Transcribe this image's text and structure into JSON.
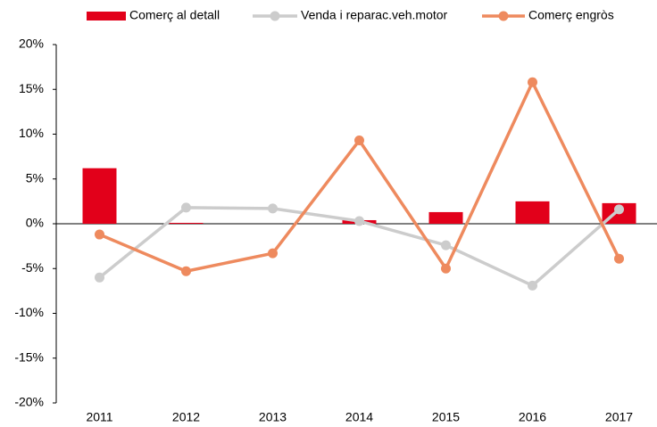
{
  "chart_data": {
    "type": "bar_line",
    "categories": [
      "2011",
      "2012",
      "2013",
      "2014",
      "2015",
      "2016",
      "2017"
    ],
    "series": [
      {
        "name": "Comerç al detall",
        "type": "bar",
        "color": "#e2001a",
        "values": [
          6.2,
          0.1,
          0,
          0.4,
          1.3,
          2.5,
          2.3
        ]
      },
      {
        "name": "Venda i reparac.veh.motor",
        "type": "line",
        "color": "#cccccc",
        "values": [
          -6.0,
          1.8,
          1.7,
          0.3,
          -2.4,
          -6.9,
          1.6
        ]
      },
      {
        "name": "Comerç engròs",
        "type": "line",
        "color": "#ee8a5e",
        "values": [
          -1.2,
          -5.3,
          -3.3,
          9.3,
          -5.0,
          15.8,
          -3.9
        ]
      }
    ],
    "ylim": [
      -20,
      20
    ],
    "yticks": [
      {
        "value": -20,
        "label": "-20%"
      },
      {
        "value": -15,
        "label": "-15%"
      },
      {
        "value": -10,
        "label": "-10%"
      },
      {
        "value": -5,
        "label": "-5%"
      },
      {
        "value": 0,
        "label": "0%"
      },
      {
        "value": 5,
        "label": "5%"
      },
      {
        "value": 10,
        "label": "10%"
      },
      {
        "value": 15,
        "label": "15%"
      },
      {
        "value": 20,
        "label": "20%"
      }
    ],
    "legend": "top"
  }
}
